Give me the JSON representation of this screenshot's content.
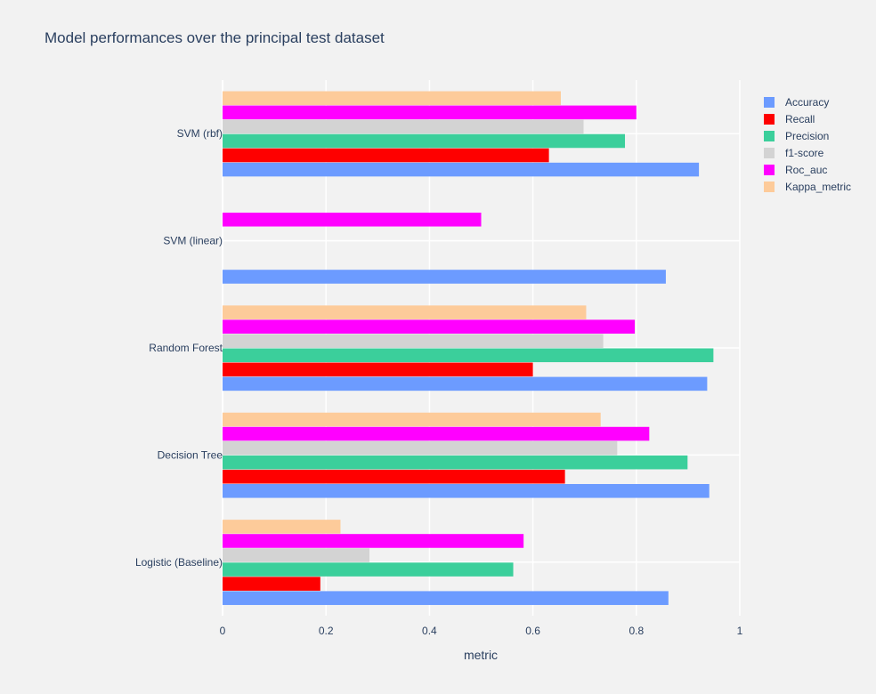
{
  "chart_data": {
    "type": "bar",
    "orientation": "horizontal",
    "barmode": "group",
    "title": "Model performances over the principal test dataset",
    "xlabel": "metric",
    "ylabel": "",
    "xlim": [
      0,
      1
    ],
    "x_ticks": [
      "0",
      "0.2",
      "0.4",
      "0.6",
      "0.8",
      "1"
    ],
    "grid": true,
    "legend_position": "top-right",
    "categories": [
      "Logistic (Baseline)",
      "Decision Tree",
      "Random Forest",
      "SVM (linear)",
      "SVM (rbf)"
    ],
    "series": [
      {
        "name": "Accuracy",
        "color": "#6c9bff",
        "values": [
          0.862,
          0.941,
          0.937,
          0.857,
          0.921
        ]
      },
      {
        "name": "Recall",
        "color": "#fe0000",
        "values": [
          0.189,
          0.662,
          0.6,
          0,
          0.631
        ]
      },
      {
        "name": "Precision",
        "color": "#3bcf9b",
        "values": [
          0.562,
          0.899,
          0.949,
          0,
          0.778
        ]
      },
      {
        "name": "f1-score",
        "color": "#d3d3d3",
        "values": [
          0.284,
          0.763,
          0.736,
          0,
          0.698
        ]
      },
      {
        "name": "Roc_auc",
        "color": "#ff00ff",
        "values": [
          0.582,
          0.825,
          0.797,
          0.5,
          0.8
        ]
      },
      {
        "name": "Kappa_metric",
        "color": "#fdcb9a",
        "values": [
          0.228,
          0.731,
          0.703,
          0,
          0.654
        ]
      }
    ]
  }
}
